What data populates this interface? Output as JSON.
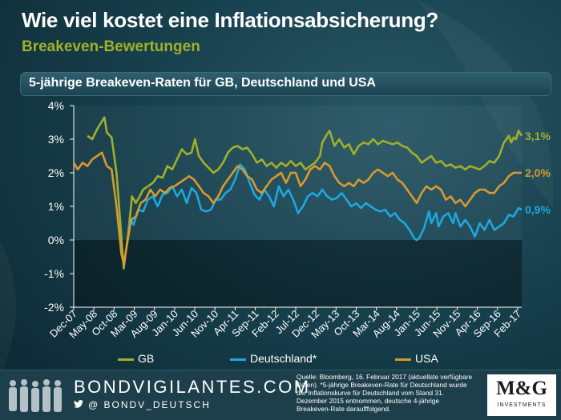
{
  "title": "Wie viel kostet eine Inflationsabsicherung?",
  "subtitle": "Breakeven-Bewertungen",
  "colors": {
    "gb": "#9fb02a",
    "de": "#1ea7e0",
    "usa": "#d89a2f",
    "background": "#0d2b36"
  },
  "chart_data": {
    "type": "line",
    "title": "5-jährige Breakeven-Raten für GB, Deutschland und USA",
    "xlabel": "",
    "ylabel": "",
    "ylim": [
      -2,
      4
    ],
    "yticks": [
      -2,
      -1,
      0,
      1,
      2,
      3,
      4
    ],
    "ytick_labels": [
      "-2%",
      "-1%",
      "0%",
      "1%",
      "2%",
      "3%",
      "4%"
    ],
    "xlim": [
      2007.917,
      2017.167
    ],
    "x_tick_positions": [
      2007.917,
      2008.333,
      2008.75,
      2009.167,
      2009.583,
      2010.0,
      2010.417,
      2010.833,
      2011.25,
      2011.667,
      2012.083,
      2012.5,
      2012.917,
      2013.333,
      2013.75,
      2014.167,
      2014.583,
      2015.0,
      2015.417,
      2015.833,
      2016.25,
      2016.667,
      2017.083
    ],
    "x_tick_labels": [
      "Dec-07",
      "May-08",
      "Oct-08",
      "Mar-09",
      "Aug-09",
      "Jan-10",
      "Jun-10",
      "Nov-10",
      "Apr-11",
      "Sep-11",
      "Feb-12",
      "Jul-12",
      "Dec-12",
      "May-13",
      "Oct-13",
      "Mar-14",
      "Aug-14",
      "Jan-15",
      "Jun-15",
      "Nov-15",
      "Apr-16",
      "Sep-16",
      "Feb-17"
    ],
    "series": [
      {
        "name": "GB",
        "end_label": "3,1%",
        "points": [
          [
            2008.2,
            3.1
          ],
          [
            2008.3,
            3.0
          ],
          [
            2008.4,
            3.3
          ],
          [
            2008.55,
            3.65
          ],
          [
            2008.6,
            3.2
          ],
          [
            2008.7,
            3.05
          ],
          [
            2008.8,
            2.0
          ],
          [
            2008.88,
            0.5
          ],
          [
            2008.95,
            -0.85
          ],
          [
            2009.05,
            0.3
          ],
          [
            2009.12,
            1.3
          ],
          [
            2009.2,
            1.1
          ],
          [
            2009.28,
            1.3
          ],
          [
            2009.35,
            1.5
          ],
          [
            2009.45,
            1.6
          ],
          [
            2009.55,
            1.7
          ],
          [
            2009.65,
            1.9
          ],
          [
            2009.75,
            1.85
          ],
          [
            2009.85,
            2.2
          ],
          [
            2009.95,
            2.1
          ],
          [
            2010.05,
            2.4
          ],
          [
            2010.15,
            2.7
          ],
          [
            2010.25,
            2.55
          ],
          [
            2010.35,
            2.6
          ],
          [
            2010.42,
            3.0
          ],
          [
            2010.5,
            2.5
          ],
          [
            2010.6,
            2.3
          ],
          [
            2010.7,
            2.15
          ],
          [
            2010.8,
            2.0
          ],
          [
            2010.9,
            2.1
          ],
          [
            2011.0,
            2.3
          ],
          [
            2011.1,
            2.6
          ],
          [
            2011.2,
            2.75
          ],
          [
            2011.3,
            2.8
          ],
          [
            2011.4,
            2.7
          ],
          [
            2011.5,
            2.75
          ],
          [
            2011.6,
            2.55
          ],
          [
            2011.7,
            2.3
          ],
          [
            2011.8,
            2.4
          ],
          [
            2011.9,
            2.2
          ],
          [
            2012.0,
            2.3
          ],
          [
            2012.1,
            2.15
          ],
          [
            2012.2,
            2.3
          ],
          [
            2012.3,
            2.2
          ],
          [
            2012.4,
            2.35
          ],
          [
            2012.5,
            2.2
          ],
          [
            2012.6,
            2.3
          ],
          [
            2012.7,
            2.1
          ],
          [
            2012.8,
            2.2
          ],
          [
            2012.9,
            2.3
          ],
          [
            2013.0,
            2.5
          ],
          [
            2013.05,
            2.9
          ],
          [
            2013.15,
            3.15
          ],
          [
            2013.2,
            3.25
          ],
          [
            2013.3,
            2.8
          ],
          [
            2013.4,
            3.0
          ],
          [
            2013.5,
            2.75
          ],
          [
            2013.6,
            2.85
          ],
          [
            2013.7,
            2.55
          ],
          [
            2013.8,
            2.8
          ],
          [
            2013.9,
            2.9
          ],
          [
            2014.0,
            2.85
          ],
          [
            2014.1,
            3.0
          ],
          [
            2014.2,
            2.85
          ],
          [
            2014.3,
            2.95
          ],
          [
            2014.4,
            2.9
          ],
          [
            2014.5,
            2.85
          ],
          [
            2014.6,
            2.9
          ],
          [
            2014.7,
            2.8
          ],
          [
            2014.8,
            2.75
          ],
          [
            2014.9,
            2.6
          ],
          [
            2015.0,
            2.5
          ],
          [
            2015.1,
            2.3
          ],
          [
            2015.2,
            2.4
          ],
          [
            2015.3,
            2.5
          ],
          [
            2015.4,
            2.3
          ],
          [
            2015.5,
            2.35
          ],
          [
            2015.6,
            2.2
          ],
          [
            2015.7,
            2.25
          ],
          [
            2015.8,
            2.15
          ],
          [
            2015.9,
            2.2
          ],
          [
            2016.0,
            2.1
          ],
          [
            2016.1,
            2.2
          ],
          [
            2016.2,
            2.15
          ],
          [
            2016.3,
            2.1
          ],
          [
            2016.4,
            2.2
          ],
          [
            2016.5,
            2.35
          ],
          [
            2016.6,
            2.3
          ],
          [
            2016.7,
            2.5
          ],
          [
            2016.8,
            2.9
          ],
          [
            2016.9,
            3.1
          ],
          [
            2016.95,
            2.9
          ],
          [
            2017.0,
            3.05
          ],
          [
            2017.05,
            3.0
          ],
          [
            2017.1,
            3.25
          ],
          [
            2017.167,
            3.1
          ]
        ]
      },
      {
        "name": "Deutschland*",
        "end_label": "0,9%",
        "points": [
          [
            2009.05,
            0.4
          ],
          [
            2009.1,
            0.6
          ],
          [
            2009.15,
            0.45
          ],
          [
            2009.25,
            0.9
          ],
          [
            2009.35,
            0.85
          ],
          [
            2009.45,
            1.2
          ],
          [
            2009.55,
            1.3
          ],
          [
            2009.65,
            1.0
          ],
          [
            2009.75,
            1.35
          ],
          [
            2009.85,
            1.4
          ],
          [
            2009.95,
            1.6
          ],
          [
            2010.05,
            1.3
          ],
          [
            2010.15,
            1.5
          ],
          [
            2010.25,
            1.1
          ],
          [
            2010.35,
            1.55
          ],
          [
            2010.45,
            1.4
          ],
          [
            2010.55,
            0.9
          ],
          [
            2010.65,
            0.85
          ],
          [
            2010.75,
            0.9
          ],
          [
            2010.85,
            1.2
          ],
          [
            2010.95,
            1.2
          ],
          [
            2011.05,
            1.4
          ],
          [
            2011.15,
            1.5
          ],
          [
            2011.25,
            1.8
          ],
          [
            2011.35,
            2.25
          ],
          [
            2011.45,
            2.1
          ],
          [
            2011.55,
            1.7
          ],
          [
            2011.65,
            1.35
          ],
          [
            2011.75,
            1.2
          ],
          [
            2011.85,
            1.5
          ],
          [
            2011.95,
            1.3
          ],
          [
            2012.05,
            1.0
          ],
          [
            2012.15,
            1.6
          ],
          [
            2012.25,
            1.3
          ],
          [
            2012.35,
            1.5
          ],
          [
            2012.45,
            1.2
          ],
          [
            2012.55,
            0.8
          ],
          [
            2012.65,
            1.0
          ],
          [
            2012.75,
            1.3
          ],
          [
            2012.85,
            1.4
          ],
          [
            2012.95,
            1.3
          ],
          [
            2013.05,
            1.5
          ],
          [
            2013.15,
            1.3
          ],
          [
            2013.25,
            1.2
          ],
          [
            2013.35,
            1.25
          ],
          [
            2013.45,
            1.4
          ],
          [
            2013.55,
            1.2
          ],
          [
            2013.65,
            1.0
          ],
          [
            2013.75,
            1.1
          ],
          [
            2013.85,
            0.95
          ],
          [
            2013.95,
            1.1
          ],
          [
            2014.05,
            1.0
          ],
          [
            2014.15,
            0.9
          ],
          [
            2014.25,
            0.85
          ],
          [
            2014.35,
            0.9
          ],
          [
            2014.45,
            0.7
          ],
          [
            2014.55,
            0.8
          ],
          [
            2014.65,
            0.6
          ],
          [
            2014.75,
            0.5
          ],
          [
            2014.85,
            0.3
          ],
          [
            2014.95,
            0.05
          ],
          [
            2015.0,
            0.0
          ],
          [
            2015.05,
            0.05
          ],
          [
            2015.15,
            0.35
          ],
          [
            2015.25,
            0.85
          ],
          [
            2015.3,
            0.5
          ],
          [
            2015.4,
            0.8
          ],
          [
            2015.45,
            0.4
          ],
          [
            2015.55,
            0.7
          ],
          [
            2015.65,
            0.8
          ],
          [
            2015.75,
            0.5
          ],
          [
            2015.8,
            0.8
          ],
          [
            2015.9,
            0.4
          ],
          [
            2016.0,
            0.6
          ],
          [
            2016.1,
            0.4
          ],
          [
            2016.2,
            0.1
          ],
          [
            2016.3,
            0.5
          ],
          [
            2016.4,
            0.3
          ],
          [
            2016.5,
            0.6
          ],
          [
            2016.6,
            0.3
          ],
          [
            2016.7,
            0.4
          ],
          [
            2016.8,
            0.5
          ],
          [
            2016.9,
            0.75
          ],
          [
            2017.0,
            0.7
          ],
          [
            2017.1,
            0.95
          ],
          [
            2017.167,
            0.9
          ]
        ]
      },
      {
        "name": "USA",
        "end_label": "2,0%",
        "points": [
          [
            2007.917,
            2.3
          ],
          [
            2008.0,
            2.1
          ],
          [
            2008.1,
            2.3
          ],
          [
            2008.2,
            2.2
          ],
          [
            2008.3,
            2.4
          ],
          [
            2008.4,
            2.5
          ],
          [
            2008.5,
            2.6
          ],
          [
            2008.6,
            2.2
          ],
          [
            2008.7,
            2.1
          ],
          [
            2008.8,
            1.0
          ],
          [
            2008.9,
            -0.4
          ],
          [
            2008.95,
            -0.7
          ],
          [
            2009.0,
            -0.3
          ],
          [
            2009.1,
            0.6
          ],
          [
            2009.2,
            0.7
          ],
          [
            2009.3,
            1.1
          ],
          [
            2009.4,
            1.2
          ],
          [
            2009.5,
            1.5
          ],
          [
            2009.6,
            1.3
          ],
          [
            2009.7,
            1.5
          ],
          [
            2009.8,
            1.4
          ],
          [
            2009.9,
            1.55
          ],
          [
            2010.0,
            1.6
          ],
          [
            2010.1,
            1.7
          ],
          [
            2010.2,
            1.8
          ],
          [
            2010.3,
            1.9
          ],
          [
            2010.4,
            1.8
          ],
          [
            2010.5,
            1.6
          ],
          [
            2010.6,
            1.4
          ],
          [
            2010.7,
            1.3
          ],
          [
            2010.8,
            1.1
          ],
          [
            2010.9,
            1.3
          ],
          [
            2011.0,
            1.6
          ],
          [
            2011.1,
            1.8
          ],
          [
            2011.2,
            2.0
          ],
          [
            2011.3,
            2.2
          ],
          [
            2011.4,
            2.1
          ],
          [
            2011.5,
            1.9
          ],
          [
            2011.6,
            1.8
          ],
          [
            2011.7,
            1.5
          ],
          [
            2011.8,
            1.4
          ],
          [
            2011.9,
            1.6
          ],
          [
            2012.0,
            1.8
          ],
          [
            2012.1,
            1.9
          ],
          [
            2012.2,
            2.0
          ],
          [
            2012.3,
            1.7
          ],
          [
            2012.4,
            2.0
          ],
          [
            2012.5,
            2.0
          ],
          [
            2012.6,
            1.6
          ],
          [
            2012.7,
            1.8
          ],
          [
            2012.8,
            2.1
          ],
          [
            2012.9,
            2.2
          ],
          [
            2013.0,
            2.1
          ],
          [
            2013.1,
            2.3
          ],
          [
            2013.2,
            2.2
          ],
          [
            2013.3,
            1.9
          ],
          [
            2013.4,
            1.7
          ],
          [
            2013.5,
            1.6
          ],
          [
            2013.6,
            1.7
          ],
          [
            2013.7,
            1.6
          ],
          [
            2013.8,
            1.8
          ],
          [
            2013.9,
            1.7
          ],
          [
            2014.0,
            1.8
          ],
          [
            2014.1,
            2.0
          ],
          [
            2014.2,
            2.1
          ],
          [
            2014.3,
            2.0
          ],
          [
            2014.4,
            1.9
          ],
          [
            2014.5,
            2.0
          ],
          [
            2014.6,
            1.8
          ],
          [
            2014.7,
            1.7
          ],
          [
            2014.8,
            1.5
          ],
          [
            2014.9,
            1.3
          ],
          [
            2015.0,
            1.1
          ],
          [
            2015.1,
            1.4
          ],
          [
            2015.2,
            1.6
          ],
          [
            2015.3,
            1.5
          ],
          [
            2015.4,
            1.6
          ],
          [
            2015.5,
            1.5
          ],
          [
            2015.6,
            1.2
          ],
          [
            2015.7,
            1.3
          ],
          [
            2015.8,
            1.1
          ],
          [
            2015.9,
            1.2
          ],
          [
            2016.0,
            1.0
          ],
          [
            2016.1,
            1.2
          ],
          [
            2016.2,
            1.4
          ],
          [
            2016.3,
            1.5
          ],
          [
            2016.4,
            1.5
          ],
          [
            2016.5,
            1.4
          ],
          [
            2016.6,
            1.4
          ],
          [
            2016.7,
            1.6
          ],
          [
            2016.8,
            1.7
          ],
          [
            2016.9,
            1.9
          ],
          [
            2017.0,
            2.0
          ],
          [
            2017.167,
            2.0
          ]
        ]
      }
    ],
    "legend": [
      "GB",
      "Deutschland*",
      "USA"
    ],
    "legend_position": "bottom",
    "grid": false
  },
  "footer": {
    "brand": "BONDVIGILANTES.COM",
    "handle": "@ BONDV_DEUTSCH",
    "source": "Quelle: Bloomberg, 16. Februar 2017 (aktuellste verfügbare Daten). *5-jährige Breakeven-Rate für Deutschland wurde der Inflationskurve für Deutschland vom Stand 31. Dezember 2015 entnommen, deutsche 4-jährige Breakeven-Rate daraufffolgend.",
    "logo_mark": "M&G",
    "logo_sub": "INVESTMENTS"
  }
}
